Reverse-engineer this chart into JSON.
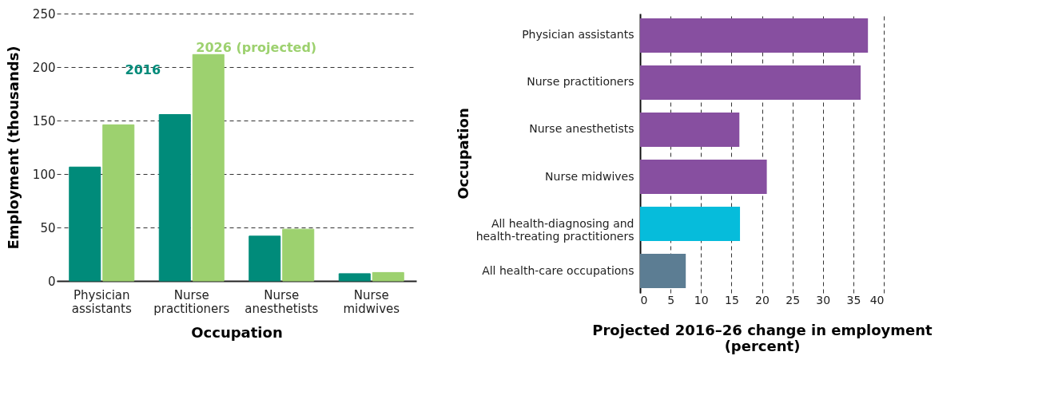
{
  "chart_data": [
    {
      "type": "bar",
      "categories": [
        "Physician assistants",
        "Nurse practitioners",
        "Nurse anesthetists",
        "Nurse midwives"
      ],
      "xlabel": "Occupation",
      "ylabel": "Employment (thousands)",
      "ylim": [
        0,
        250
      ],
      "yticks": [
        0,
        50,
        100,
        150,
        200,
        250
      ],
      "grid": "y",
      "series": [
        {
          "name": "2016",
          "color": "#008b7a",
          "values": [
            106.5,
            155.6,
            41.9,
            6.8
          ]
        },
        {
          "name": "2026 (projected)",
          "color": "#9dd16f",
          "values": [
            146,
            211.7,
            48.4,
            7.9
          ]
        }
      ]
    },
    {
      "type": "bar",
      "orientation": "horizontal",
      "categories": [
        "Physician assistants",
        "Nurse practitioners",
        "Nurse anesthetists",
        "Nurse midwives",
        "All health-diagnosing and health-treating practitioners",
        "All health-care occupations"
      ],
      "values": [
        37.4,
        36.2,
        16.3,
        20.8,
        16.4,
        7.5
      ],
      "colors": [
        "#874fa0",
        "#874fa0",
        "#874fa0",
        "#874fa0",
        "#06bcdb",
        "#5c7d93"
      ],
      "xlabel": "Projected 2016–26 change in employment (percent)",
      "ylabel": "Occupation",
      "xlim": [
        0,
        40
      ],
      "xticks": [
        0,
        5,
        10,
        15,
        20,
        25,
        30,
        35,
        40
      ],
      "grid": "x"
    }
  ]
}
